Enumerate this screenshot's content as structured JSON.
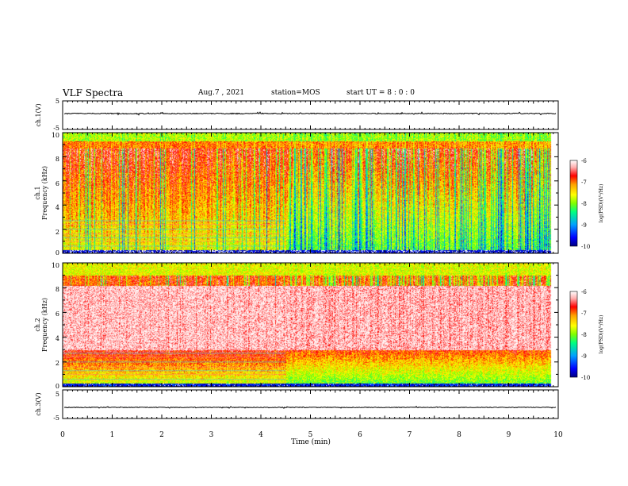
{
  "header": {
    "title": "VLF Spectra",
    "date": "Aug.7 , 2021",
    "station": "station=MOS",
    "start": "start UT =  8 : 0 : 0"
  },
  "chart_data": {
    "type": "heatmap",
    "title": "VLF Spectra",
    "xlabel": "Time (min)",
    "xlim": [
      0,
      10
    ],
    "x_ticks": [
      "0",
      "1",
      "2",
      "3",
      "4",
      "5",
      "6",
      "7",
      "8",
      "9",
      "10"
    ],
    "panels": [
      {
        "name": "ch.1(V)",
        "kind": "waveform",
        "ylabel": "ch.1(V)",
        "ylim": [
          -5,
          5
        ],
        "y_ticks": [
          "5",
          "-5"
        ]
      },
      {
        "name": "ch.1",
        "kind": "spectrogram",
        "ylabel": "ch.1",
        "ylabel2": "Frequency (kHz)",
        "ylim": [
          0,
          10
        ],
        "y_ticks": [
          "0",
          "2",
          "4",
          "6",
          "8",
          "10"
        ],
        "data_end_min": 9.85,
        "regime_change_min": 4.5
      },
      {
        "name": "ch.2",
        "kind": "spectrogram",
        "ylabel": "ch.2",
        "ylabel2": "Frequency (kHz)",
        "ylim": [
          0,
          10
        ],
        "y_ticks": [
          "0",
          "2",
          "4",
          "6",
          "8",
          "10"
        ],
        "data_end_min": 9.85,
        "regime_change_min": 4.5
      },
      {
        "name": "ch.3(V)",
        "kind": "waveform",
        "ylabel": "ch.3(V)",
        "ylabel2": "ch.3(V)",
        "ylim": [
          -5,
          5
        ],
        "y_ticks": [
          "5",
          "-5"
        ]
      }
    ],
    "colorbar": {
      "label": "log(PSD)(V²/Hz)",
      "range": [
        -10,
        -6
      ],
      "ticks": [
        "-6",
        "-7",
        "-8",
        "-9",
        "-10"
      ],
      "colors": [
        "#000080",
        "#0000ff",
        "#00a0ff",
        "#00ff80",
        "#80ff00",
        "#ffff00",
        "#ffa000",
        "#ff0000",
        "#ffc0c0",
        "#ffffff"
      ]
    }
  }
}
